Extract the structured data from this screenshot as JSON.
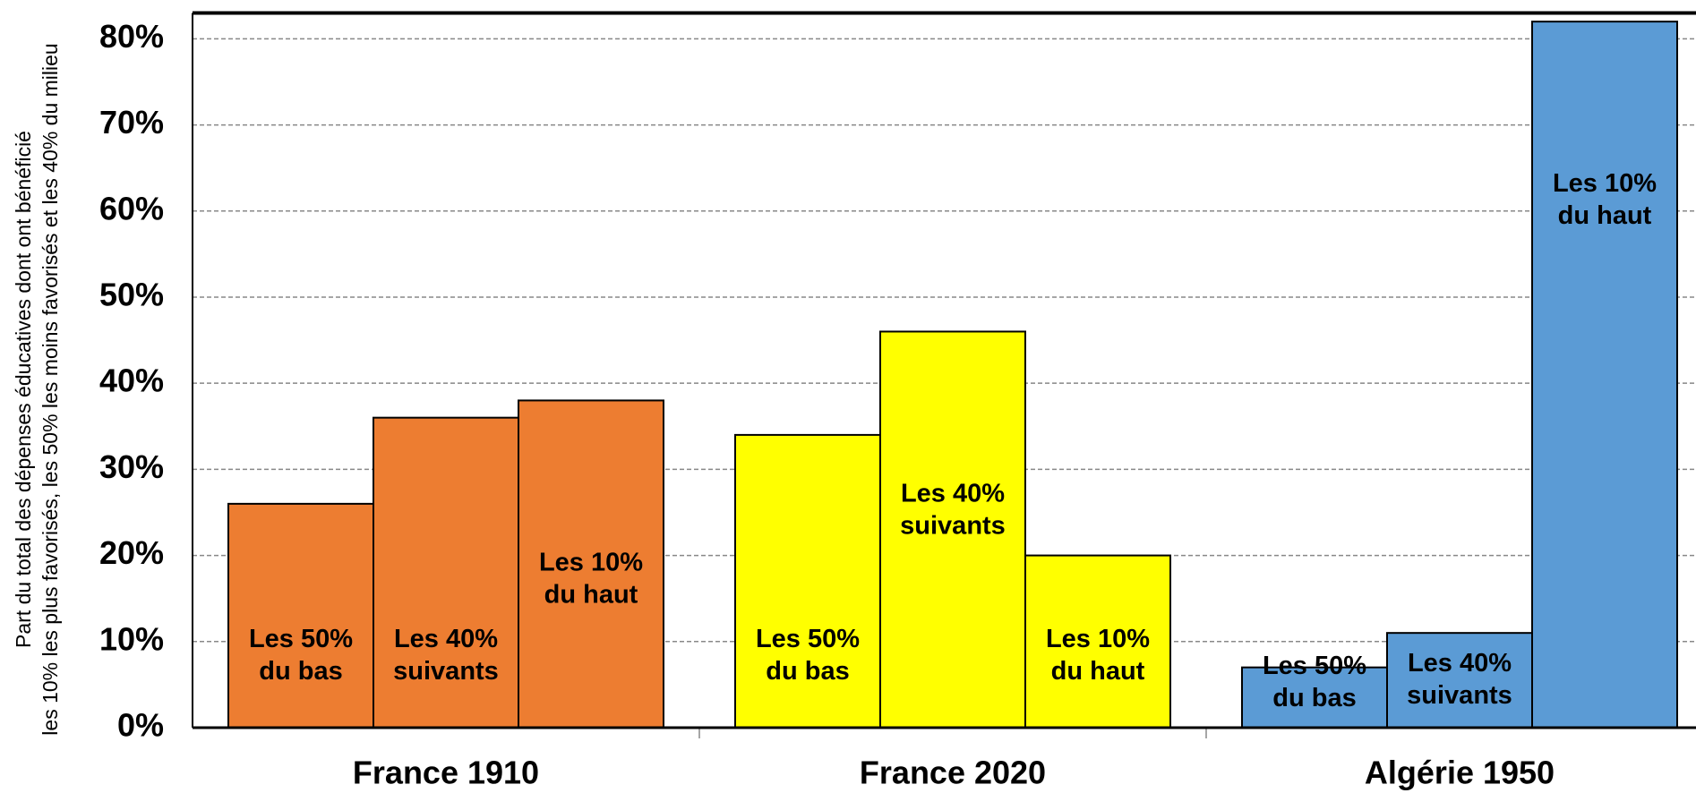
{
  "chart_data": {
    "type": "bar",
    "ylabel": [
      "Part du total des dépenses éducatives dont ont bénéficié",
      "les 10% les plus favorisés, les 50% les moins favorisés et les 40% du milieu"
    ],
    "categories": [
      "France 1910",
      "France 2020",
      "Algérie 1950"
    ],
    "category_colors": [
      "#ED7D31",
      "#FFFF00",
      "#5B9BD5"
    ],
    "series": [
      {
        "name": [
          "Les 50%",
          "du bas"
        ],
        "values": [
          26,
          34,
          7
        ]
      },
      {
        "name": [
          "Les 40%",
          "suivants"
        ],
        "values": [
          36,
          46,
          11
        ]
      },
      {
        "name": [
          "Les 10%",
          "du haut"
        ],
        "values": [
          38,
          20,
          82
        ]
      }
    ],
    "ylim": [
      0,
      83
    ],
    "yticks": [
      {
        "value": 0,
        "label": "0%"
      },
      {
        "value": 10,
        "label": "10%"
      },
      {
        "value": 20,
        "label": "20%"
      },
      {
        "value": 30,
        "label": "30%"
      },
      {
        "value": 40,
        "label": "40%"
      },
      {
        "value": 50,
        "label": "50%"
      },
      {
        "value": 60,
        "label": "60%"
      },
      {
        "value": 70,
        "label": "70%"
      },
      {
        "value": 80,
        "label": "80%"
      }
    ],
    "grid": true
  }
}
